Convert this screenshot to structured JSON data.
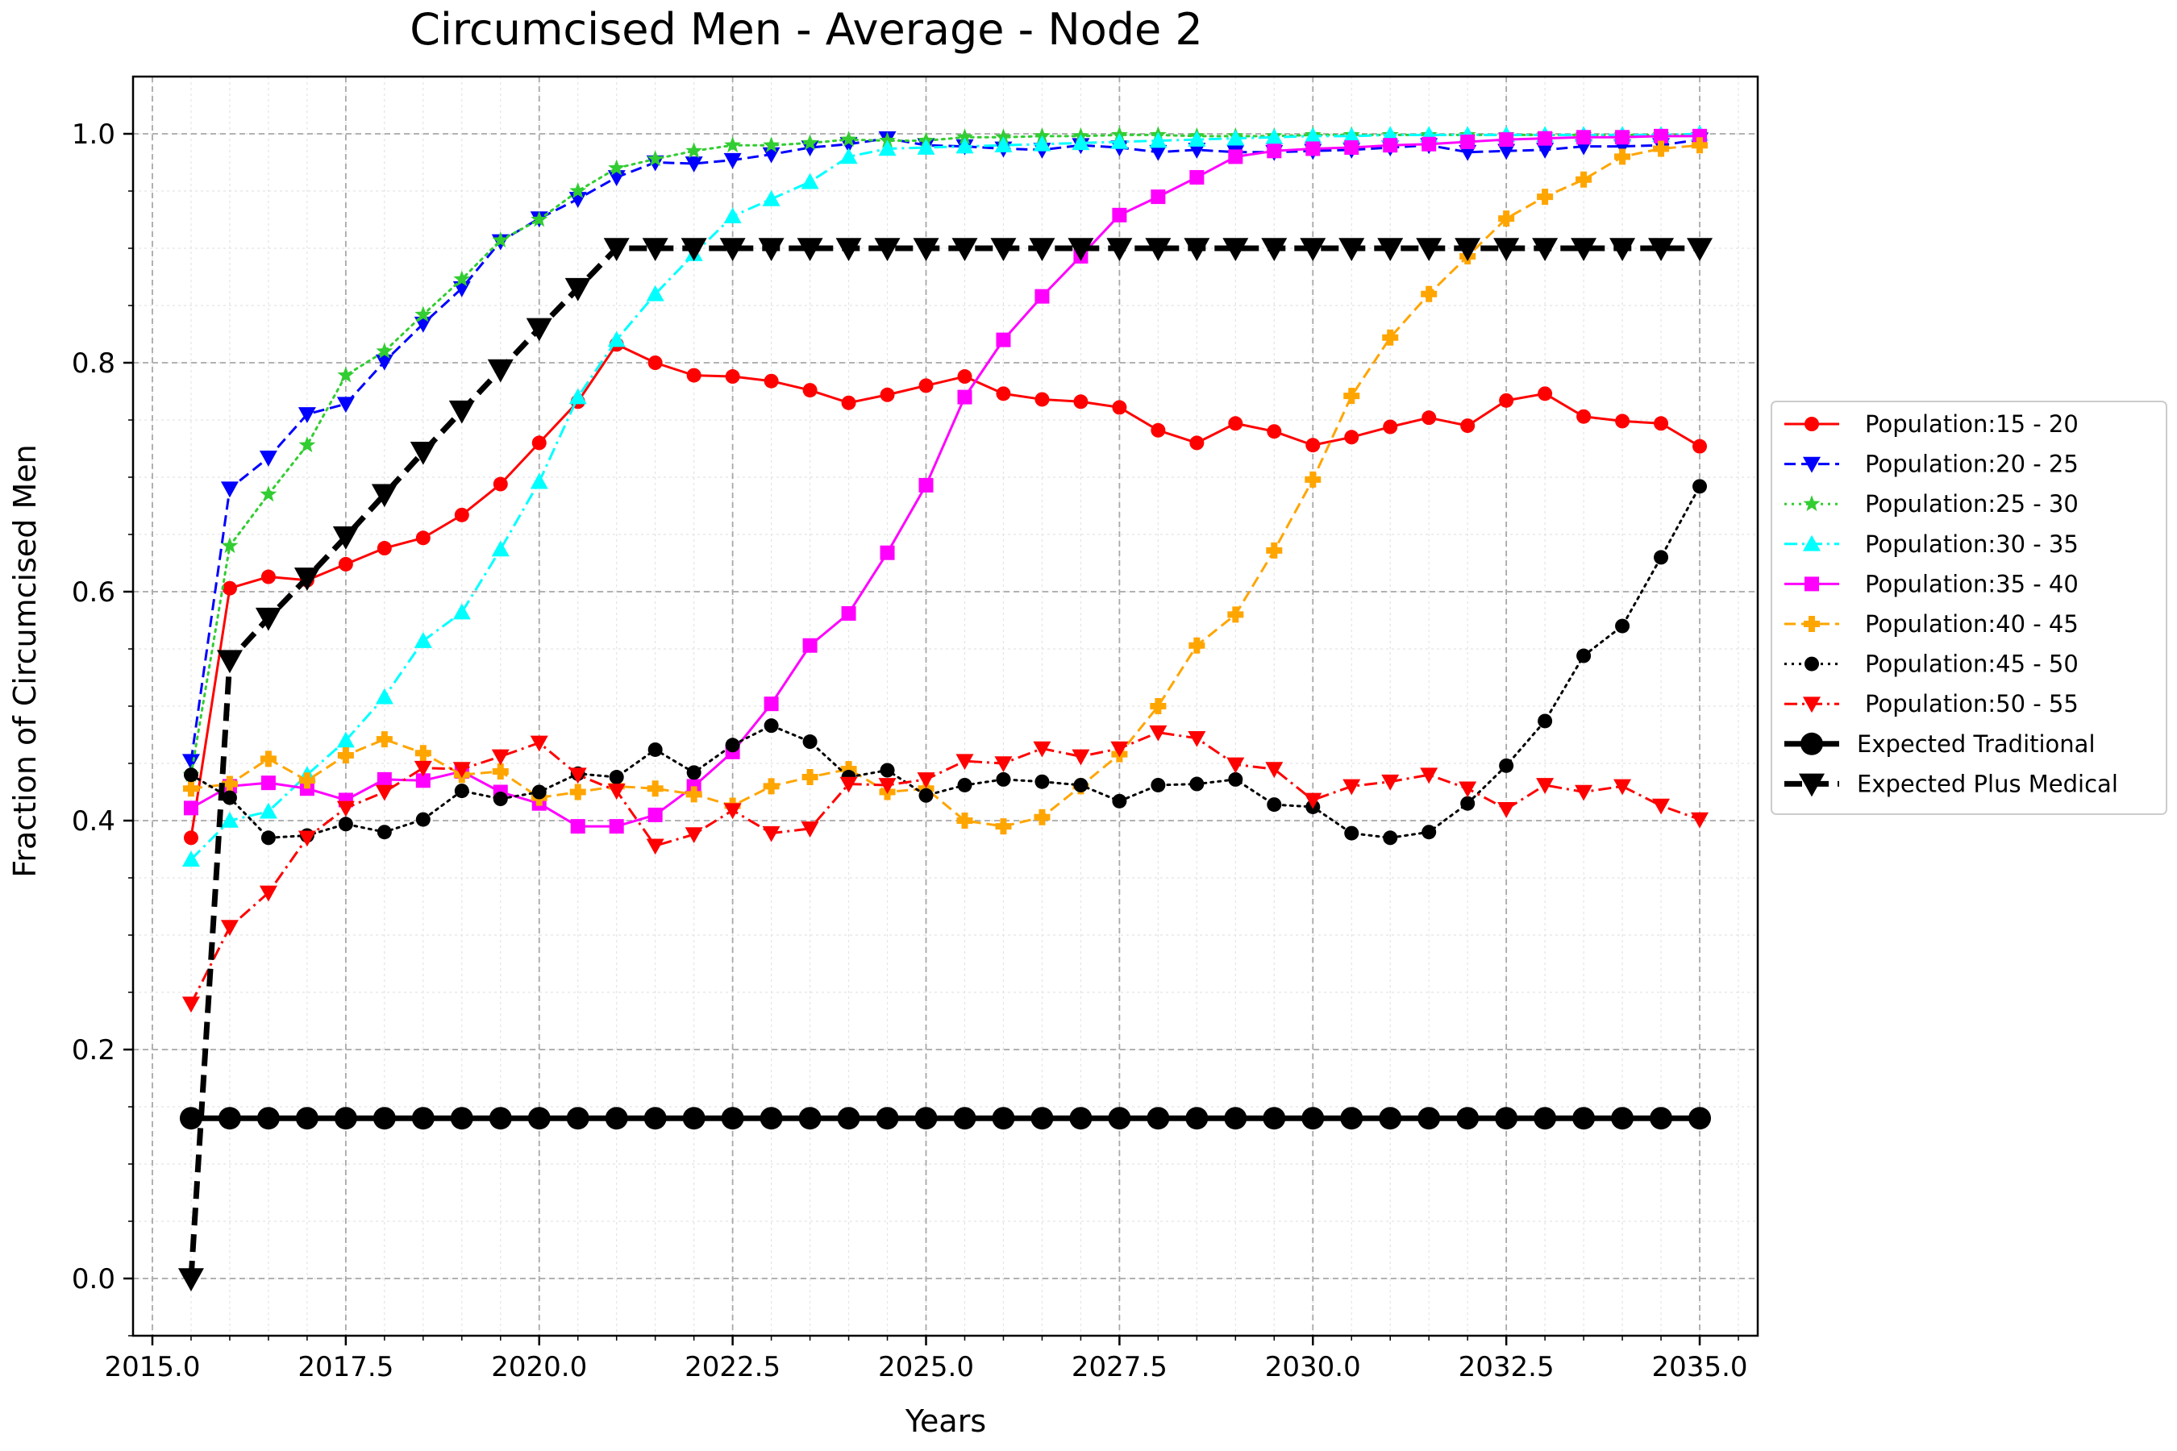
{
  "chart_data": {
    "type": "line",
    "title": "Circumcised Men - Average - Node 2",
    "xlabel": "Years",
    "ylabel": "Fraction of Circumcised Men",
    "xlim": [
      2014.75,
      2035.75
    ],
    "ylim": [
      -0.05,
      1.05
    ],
    "xticks": [
      2015.0,
      2017.5,
      2020.0,
      2022.5,
      2025.0,
      2027.5,
      2030.0,
      2032.5,
      2035.0
    ],
    "xtick_labels": [
      "2015.0",
      "2017.5",
      "2020.0",
      "2022.5",
      "2025.0",
      "2027.5",
      "2030.0",
      "2032.5",
      "2035.0"
    ],
    "yticks": [
      0.0,
      0.2,
      0.4,
      0.6,
      0.8,
      1.0
    ],
    "ytick_labels": [
      "0.0",
      "0.2",
      "0.4",
      "0.6",
      "0.8",
      "1.0"
    ],
    "grid": true,
    "legend_position": "right-outside",
    "x": [
      2015.5,
      2016.0,
      2016.5,
      2017.0,
      2017.5,
      2018.0,
      2018.5,
      2019.0,
      2019.5,
      2020.0,
      2020.5,
      2021.0,
      2021.5,
      2022.0,
      2022.5,
      2023.0,
      2023.5,
      2024.0,
      2024.5,
      2025.0,
      2025.5,
      2026.0,
      2026.5,
      2027.0,
      2027.5,
      2028.0,
      2028.5,
      2029.0,
      2029.5,
      2030.0,
      2030.5,
      2031.0,
      2031.5,
      2032.0,
      2032.5,
      2033.0,
      2033.5,
      2034.0,
      2034.5,
      2035.0
    ],
    "series": [
      {
        "name": "Population:15 - 20",
        "color": "#ff0000",
        "marker": "circle",
        "dash": "solid",
        "width": 3,
        "values": [
          0.385,
          0.603,
          0.613,
          0.61,
          0.624,
          0.638,
          0.647,
          0.667,
          0.694,
          0.73,
          0.766,
          0.816,
          0.8,
          0.789,
          0.788,
          0.784,
          0.776,
          0.765,
          0.772,
          0.78,
          0.788,
          0.773,
          0.768,
          0.766,
          0.761,
          0.741,
          0.73,
          0.747,
          0.74,
          0.728,
          0.735,
          0.744,
          0.752,
          0.745,
          0.767,
          0.773,
          0.753,
          0.749,
          0.747,
          0.727
        ]
      },
      {
        "name": "Population:20 - 25",
        "color": "#0000ff",
        "marker": "tri-down",
        "dash": "dashed",
        "width": 3,
        "values": [
          0.452,
          0.69,
          0.717,
          0.755,
          0.764,
          0.801,
          0.834,
          0.865,
          0.906,
          0.926,
          0.943,
          0.962,
          0.975,
          0.974,
          0.977,
          0.982,
          0.988,
          0.991,
          0.996,
          0.99,
          0.989,
          0.987,
          0.986,
          0.99,
          0.988,
          0.984,
          0.986,
          0.984,
          0.984,
          0.985,
          0.986,
          0.988,
          0.99,
          0.984,
          0.985,
          0.986,
          0.989,
          0.989,
          0.99,
          0.995
        ]
      },
      {
        "name": "Population:25 - 30",
        "color": "#32cd32",
        "marker": "star",
        "dash": "dotted",
        "width": 3,
        "values": [
          0.44,
          0.64,
          0.685,
          0.728,
          0.789,
          0.81,
          0.842,
          0.873,
          0.907,
          0.925,
          0.95,
          0.97,
          0.978,
          0.985,
          0.99,
          0.99,
          0.992,
          0.995,
          0.994,
          0.994,
          0.997,
          0.997,
          0.998,
          0.998,
          0.999,
          0.999,
          0.998,
          0.998,
          0.998,
          0.999,
          0.999,
          0.999,
          0.999,
          0.999,
          0.999,
          0.999,
          0.999,
          0.999,
          0.999,
          0.999
        ]
      },
      {
        "name": "Population:30 - 35",
        "color": "#00ffff",
        "marker": "tri-up",
        "dash": "dashdot",
        "width": 3,
        "values": [
          0.366,
          0.4,
          0.408,
          0.44,
          0.47,
          0.508,
          0.557,
          0.582,
          0.637,
          0.696,
          0.77,
          0.82,
          0.86,
          0.895,
          0.928,
          0.943,
          0.958,
          0.98,
          0.987,
          0.988,
          0.989,
          0.99,
          0.991,
          0.992,
          0.993,
          0.994,
          0.995,
          0.996,
          0.997,
          0.998,
          0.998,
          0.999,
          0.999,
          0.999,
          0.999,
          0.999,
          0.999,
          0.999,
          0.999,
          1.0
        ]
      },
      {
        "name": "Population:35 - 40",
        "color": "#ff00ff",
        "marker": "square",
        "dash": "solid",
        "width": 3,
        "values": [
          0.411,
          0.43,
          0.433,
          0.428,
          0.418,
          0.436,
          0.435,
          0.443,
          0.425,
          0.415,
          0.395,
          0.395,
          0.405,
          0.43,
          0.46,
          0.502,
          0.553,
          0.581,
          0.634,
          0.693,
          0.77,
          0.82,
          0.858,
          0.893,
          0.929,
          0.945,
          0.962,
          0.98,
          0.985,
          0.987,
          0.988,
          0.99,
          0.991,
          0.993,
          0.995,
          0.996,
          0.997,
          0.997,
          0.998,
          0.998
        ]
      },
      {
        "name": "Population:40 - 45",
        "color": "#ffa500",
        "marker": "plus",
        "dash": "dashed",
        "width": 3,
        "values": [
          0.428,
          0.432,
          0.454,
          0.435,
          0.457,
          0.471,
          0.459,
          0.44,
          0.443,
          0.42,
          0.425,
          0.43,
          0.428,
          0.423,
          0.413,
          0.43,
          0.438,
          0.445,
          0.425,
          0.428,
          0.4,
          0.395,
          0.403,
          0.43,
          0.458,
          0.5,
          0.553,
          0.58,
          0.636,
          0.698,
          0.771,
          0.822,
          0.86,
          0.893,
          0.926,
          0.945,
          0.96,
          0.98,
          0.987,
          0.99
        ]
      },
      {
        "name": "Population:45 - 50",
        "color": "#000000",
        "marker": "circle",
        "dash": "dotted",
        "width": 3,
        "values": [
          0.44,
          0.42,
          0.385,
          0.387,
          0.397,
          0.39,
          0.401,
          0.426,
          0.419,
          0.425,
          0.441,
          0.438,
          0.462,
          0.442,
          0.466,
          0.483,
          0.469,
          0.438,
          0.444,
          0.422,
          0.431,
          0.436,
          0.434,
          0.431,
          0.417,
          0.431,
          0.432,
          0.436,
          0.414,
          0.412,
          0.389,
          0.385,
          0.39,
          0.415,
          0.448,
          0.487,
          0.544,
          0.57,
          0.63,
          0.692
        ]
      },
      {
        "name": "Population:50 - 55",
        "color": "#ff0000",
        "marker": "tri-down",
        "dash": "dashdot",
        "width": 3,
        "values": [
          0.24,
          0.307,
          0.337,
          0.385,
          0.411,
          0.425,
          0.446,
          0.445,
          0.456,
          0.468,
          0.44,
          0.426,
          0.378,
          0.388,
          0.409,
          0.389,
          0.393,
          0.432,
          0.431,
          0.436,
          0.452,
          0.45,
          0.463,
          0.456,
          0.463,
          0.477,
          0.472,
          0.449,
          0.445,
          0.418,
          0.43,
          0.434,
          0.44,
          0.428,
          0.41,
          0.431,
          0.425,
          0.43,
          0.413,
          0.401
        ]
      },
      {
        "name": "Expected Traditional",
        "color": "#000000",
        "marker": "big-circle",
        "dash": "solid",
        "width": 7,
        "values": [
          0.14,
          0.14,
          0.14,
          0.14,
          0.14,
          0.14,
          0.14,
          0.14,
          0.14,
          0.14,
          0.14,
          0.14,
          0.14,
          0.14,
          0.14,
          0.14,
          0.14,
          0.14,
          0.14,
          0.14,
          0.14,
          0.14,
          0.14,
          0.14,
          0.14,
          0.14,
          0.14,
          0.14,
          0.14,
          0.14,
          0.14,
          0.14,
          0.14,
          0.14,
          0.14,
          0.14,
          0.14,
          0.14,
          0.14,
          0.14
        ]
      },
      {
        "name": "Expected Plus Medical",
        "color": "#000000",
        "marker": "big-tri-down",
        "dash": "bigdash",
        "width": 7,
        "values": [
          0.0,
          0.54,
          0.577,
          0.612,
          0.648,
          0.685,
          0.722,
          0.758,
          0.794,
          0.83,
          0.865,
          0.9,
          0.9,
          0.9,
          0.9,
          0.9,
          0.9,
          0.9,
          0.9,
          0.9,
          0.9,
          0.9,
          0.9,
          0.9,
          0.9,
          0.9,
          0.9,
          0.9,
          0.9,
          0.9,
          0.9,
          0.9,
          0.9,
          0.9,
          0.9,
          0.9,
          0.9,
          0.9,
          0.9,
          0.9
        ]
      }
    ]
  }
}
